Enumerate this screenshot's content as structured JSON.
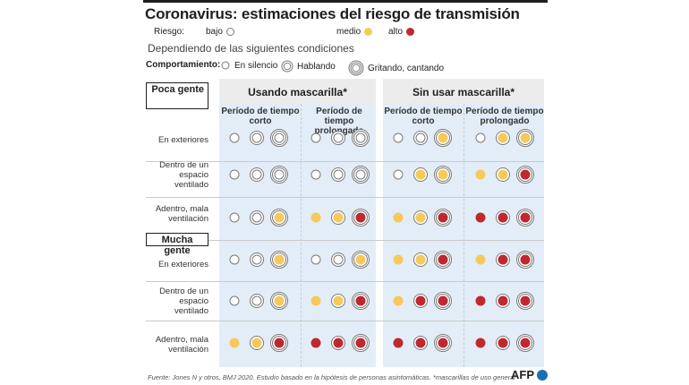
{
  "title": "Coronavirus: estimaciones del riesgo de transmisión",
  "legend_risk": {
    "label": "Riesgo:",
    "items": [
      {
        "label": "bajo",
        "level": "bajo"
      },
      {
        "label": "medio",
        "level": "medio"
      },
      {
        "label": "alto",
        "level": "alto"
      }
    ]
  },
  "subtitle": "Dependiendo de las siguientes condiciones",
  "legend_behavior": {
    "label": "Comportamiento:",
    "items": [
      {
        "label": "En silencio",
        "rings": 1
      },
      {
        "label": "Hablando",
        "rings": 2
      },
      {
        "label": "Gritando, cantando",
        "rings": 3
      }
    ]
  },
  "colors": {
    "bajo": "#ffffff",
    "medio": "#f7c95a",
    "alto": "#c0282f",
    "ring": "#7a7a7a",
    "column_bg": "#e3edf7",
    "header_bg": "#ececec"
  },
  "columns": {
    "mask_groups": [
      "Usando mascarilla*",
      "Sin usar mascarilla*"
    ],
    "periods": [
      "Período de tiempo corto",
      "Período de tiempo prolongado",
      "Período de tiempo corto",
      "Período de tiempo prolongado"
    ]
  },
  "blocks": [
    {
      "label": "Poca gente",
      "rows": [
        {
          "label": "En exteriores",
          "risk": [
            [
              "bajo",
              "bajo",
              "bajo"
            ],
            [
              "bajo",
              "bajo",
              "bajo"
            ],
            [
              "bajo",
              "bajo",
              "medio"
            ],
            [
              "bajo",
              "medio",
              "medio"
            ]
          ]
        },
        {
          "label": "Dentro de un espacio ventilado",
          "risk": [
            [
              "bajo",
              "bajo",
              "bajo"
            ],
            [
              "bajo",
              "bajo",
              "bajo"
            ],
            [
              "bajo",
              "medio",
              "medio"
            ],
            [
              "medio",
              "medio",
              "alto"
            ]
          ]
        },
        {
          "label": "Adentro, mala ventilación",
          "risk": [
            [
              "bajo",
              "bajo",
              "medio"
            ],
            [
              "medio",
              "medio",
              "alto"
            ],
            [
              "medio",
              "medio",
              "alto"
            ],
            [
              "alto",
              "alto",
              "alto"
            ]
          ]
        }
      ]
    },
    {
      "label": "Mucha gente",
      "rows": [
        {
          "label": "En exteriores",
          "risk": [
            [
              "bajo",
              "bajo",
              "medio"
            ],
            [
              "bajo",
              "bajo",
              "medio"
            ],
            [
              "medio",
              "medio",
              "alto"
            ],
            [
              "medio",
              "alto",
              "alto"
            ]
          ]
        },
        {
          "label": "Dentro de un espacio ventilado",
          "risk": [
            [
              "bajo",
              "bajo",
              "medio"
            ],
            [
              "medio",
              "medio",
              "alto"
            ],
            [
              "medio",
              "alto",
              "alto"
            ],
            [
              "alto",
              "alto",
              "alto"
            ]
          ]
        },
        {
          "label": "Adentro, mala ventilación",
          "risk": [
            [
              "medio",
              "medio",
              "alto"
            ],
            [
              "alto",
              "alto",
              "alto"
            ],
            [
              "alto",
              "alto",
              "alto"
            ],
            [
              "alto",
              "alto",
              "alto"
            ]
          ]
        }
      ]
    }
  ],
  "source": "Fuente: Jones N y otros, BMJ 2020. Estudio basado en la hipótesis de personas asintomáticas. *mascarillas de uso general",
  "agency": "AFP"
}
